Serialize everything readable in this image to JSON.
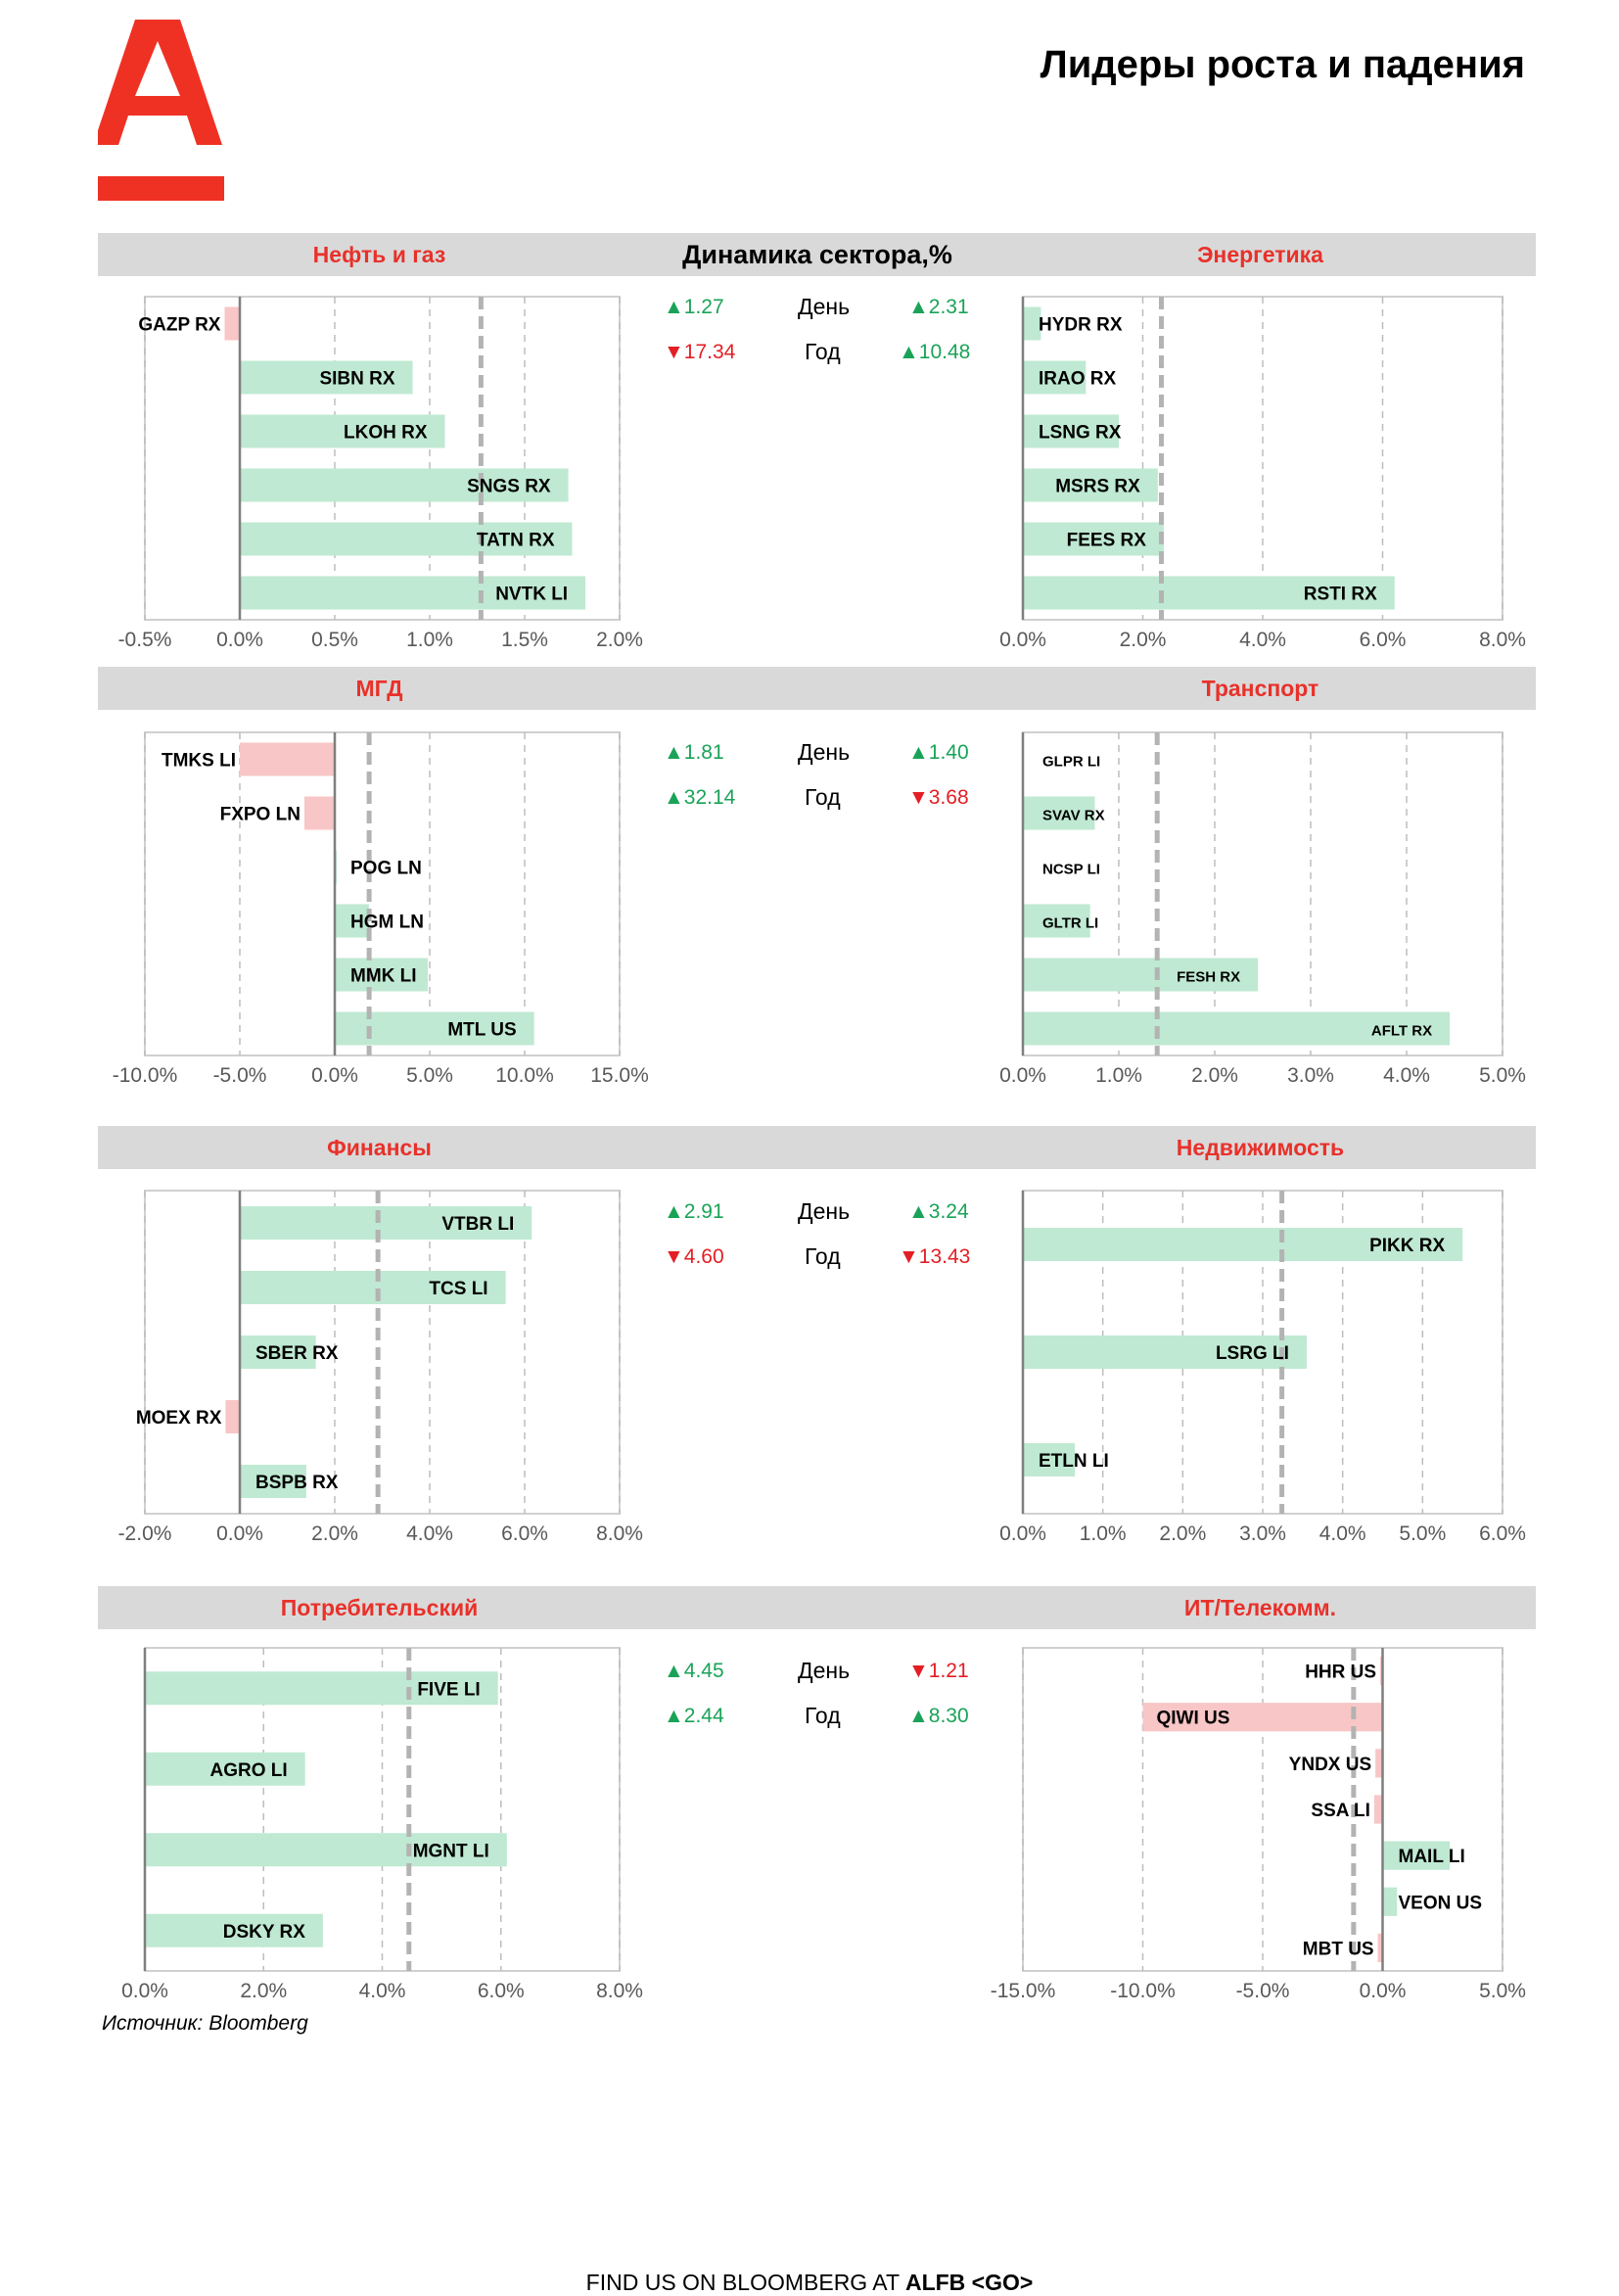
{
  "page_title": "Лидеры роста и падения",
  "dynamics_title": "Динамика сектора,%",
  "source": "Источник: Bloomberg",
  "footer": {
    "prefix": "FIND US ON BLOOMBERG AT ",
    "code": "ALFB <GO>"
  },
  "colors": {
    "brand": "#ef3124",
    "positive_bar": "#bfe9d2",
    "negative_bar": "#f8c6c6",
    "up": "#1aa358",
    "down": "#e31e24",
    "band": "#d9d9d9"
  },
  "stats": [
    {
      "day_label": "День",
      "year_label": "Год",
      "left_day": {
        "dir": "up",
        "text": "1.27"
      },
      "left_year": {
        "dir": "down",
        "text": "17.34"
      },
      "right_day": {
        "dir": "up",
        "text": "2.31"
      },
      "right_year": {
        "dir": "up",
        "text": "10.48"
      }
    },
    {
      "day_label": "День",
      "year_label": "Год",
      "left_day": {
        "dir": "up",
        "text": "1.81"
      },
      "left_year": {
        "dir": "up",
        "text": "32.14"
      },
      "right_day": {
        "dir": "up",
        "text": "1.40"
      },
      "right_year": {
        "dir": "down",
        "text": "3.68"
      }
    },
    {
      "day_label": "День",
      "year_label": "Год",
      "left_day": {
        "dir": "up",
        "text": "2.91"
      },
      "left_year": {
        "dir": "down",
        "text": "4.60"
      },
      "right_day": {
        "dir": "up",
        "text": "3.24"
      },
      "right_year": {
        "dir": "down",
        "text": "13.43"
      }
    },
    {
      "day_label": "День",
      "year_label": "Год",
      "left_day": {
        "dir": "up",
        "text": "4.45"
      },
      "left_year": {
        "dir": "up",
        "text": "2.44"
      },
      "right_day": {
        "dir": "down",
        "text": "1.21"
      },
      "right_year": {
        "dir": "up",
        "text": "8.30"
      }
    }
  ],
  "chart_data": [
    {
      "title": "Нефть и газ",
      "type": "bar",
      "orientation": "horizontal",
      "categories": [
        "GAZP RX",
        "SIBN RX",
        "LKOH RX",
        "SNGS RX",
        "TATN RX",
        "NVTK LI"
      ],
      "values": [
        -0.08,
        0.91,
        1.08,
        1.73,
        1.75,
        1.82
      ],
      "reference": 1.27,
      "xlim": [
        -0.5,
        2.0
      ],
      "ticks": [
        -0.5,
        0,
        0.5,
        1,
        1.5,
        2
      ],
      "tick_labels": [
        "-0.5%",
        "0.0%",
        "0.5%",
        "1.0%",
        "1.5%",
        "2.0%"
      ]
    },
    {
      "title": "Энергетика",
      "type": "bar",
      "orientation": "horizontal",
      "categories": [
        "HYDR RX",
        "IRAO RX",
        "LSNG RX",
        "MSRS RX",
        "FEES RX",
        "RSTI RX"
      ],
      "values": [
        0.3,
        1.05,
        1.6,
        2.25,
        2.35,
        6.2
      ],
      "reference": 2.31,
      "xlim": [
        0,
        8
      ],
      "ticks": [
        0,
        2,
        4,
        6,
        8
      ],
      "tick_labels": [
        "0.0%",
        "2.0%",
        "4.0%",
        "6.0%",
        "8.0%"
      ]
    },
    {
      "title": "МГД",
      "type": "bar",
      "orientation": "horizontal",
      "categories": [
        "TMKS LI",
        "FXPO LN",
        "POG LN",
        "HGM LN",
        "MMK LI",
        "MTL US"
      ],
      "values": [
        -5.0,
        -1.6,
        0.1,
        1.8,
        4.9,
        10.5
      ],
      "reference": 1.81,
      "xlim": [
        -10,
        15
      ],
      "ticks": [
        -10,
        -5,
        0,
        5,
        10,
        15
      ],
      "tick_labels": [
        "-10.0%",
        "-5.0%",
        "0.0%",
        "5.0%",
        "10.0%",
        "15.0%"
      ]
    },
    {
      "title": "Транспорт",
      "type": "bar",
      "orientation": "horizontal",
      "categories": [
        "GLPR LI",
        "SVAV RX",
        "NCSP LI",
        "GLTR LI",
        "FESH RX",
        "AFLT RX"
      ],
      "values": [
        0.0,
        0.75,
        0.0,
        0.7,
        2.45,
        4.45
      ],
      "reference": 1.4,
      "xlim": [
        0,
        5
      ],
      "ticks": [
        0,
        1,
        2,
        3,
        4,
        5
      ],
      "tick_labels": [
        "0.0%",
        "1.0%",
        "2.0%",
        "3.0%",
        "4.0%",
        "5.0%"
      ]
    },
    {
      "title": "Финансы",
      "type": "bar",
      "orientation": "horizontal",
      "categories": [
        "VTBR LI",
        "TCS LI",
        "SBER RX",
        "MOEX RX",
        "BSPB RX"
      ],
      "values": [
        6.15,
        5.6,
        1.6,
        -0.3,
        1.4
      ],
      "reference": 2.91,
      "xlim": [
        -2,
        8
      ],
      "ticks": [
        -2,
        0,
        2,
        4,
        6,
        8
      ],
      "tick_labels": [
        "-2.0%",
        "0.0%",
        "2.0%",
        "4.0%",
        "6.0%",
        "8.0%"
      ]
    },
    {
      "title": "Недвижимость",
      "type": "bar",
      "orientation": "horizontal",
      "categories": [
        "PIKK RX",
        "LSRG LI",
        "ETLN LI"
      ],
      "values": [
        5.5,
        3.55,
        0.65
      ],
      "reference": 3.24,
      "xlim": [
        0,
        6
      ],
      "ticks": [
        0,
        1,
        2,
        3,
        4,
        5,
        6
      ],
      "tick_labels": [
        "0.0%",
        "1.0%",
        "2.0%",
        "3.0%",
        "4.0%",
        "5.0%",
        "6.0%"
      ]
    },
    {
      "title": "Потребительский",
      "type": "bar",
      "orientation": "horizontal",
      "categories": [
        "FIVE LI",
        "AGRO LI",
        "MGNT LI",
        "DSKY RX"
      ],
      "values": [
        5.95,
        2.7,
        6.1,
        3.0
      ],
      "reference": 4.45,
      "xlim": [
        0,
        8
      ],
      "ticks": [
        0,
        2,
        4,
        6,
        8
      ],
      "tick_labels": [
        "0.0%",
        "2.0%",
        "4.0%",
        "6.0%",
        "8.0%"
      ]
    },
    {
      "title": "ИТ/Телекомм.",
      "type": "bar",
      "orientation": "horizontal",
      "categories": [
        "HHR US",
        "QIWI US",
        "YNDX US",
        "SSA LI",
        "MAIL LI",
        "VEON US",
        "MBT US"
      ],
      "values": [
        -0.1,
        -10.0,
        -0.3,
        -0.35,
        2.8,
        0.6,
        -0.2
      ],
      "reference": -1.21,
      "xlim": [
        -15,
        5
      ],
      "ticks": [
        -15,
        -10,
        -5,
        0,
        5
      ],
      "tick_labels": [
        "-15.0%",
        "-10.0%",
        "-5.0%",
        "0.0%",
        "5.0%"
      ]
    }
  ]
}
